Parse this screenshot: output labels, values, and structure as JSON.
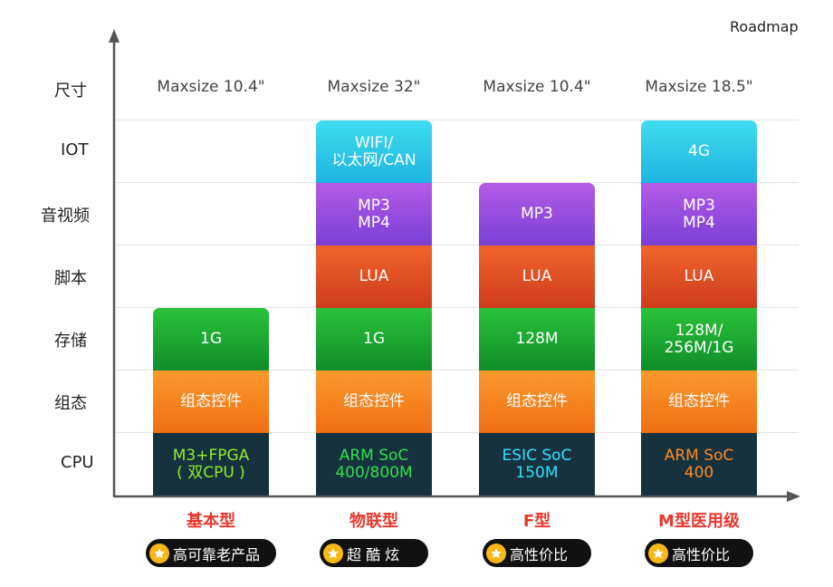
{
  "title": "Roadmap",
  "rows": [
    "尺寸",
    "IOT",
    "音视频",
    "脚本",
    "存储",
    "组态",
    "CPU"
  ],
  "products": [
    {
      "name": "基本型",
      "size": "Maxsize 10.4\"",
      "badge": "高可靠老产品",
      "cells": {
        "iot": null,
        "av": null,
        "script": null,
        "storage": "1G",
        "config": "组态控件",
        "cpu": "M3+FPGA\n( 双CPU )"
      }
    },
    {
      "name": "物联型",
      "size": "Maxsize 32\"",
      "badge": "超 酷 炫",
      "cells": {
        "iot": "WIFI/\n以太网/CAN",
        "av": "MP3\nMP4",
        "script": "LUA",
        "storage": "1G",
        "config": "组态控件",
        "cpu": "ARM SoC\n400/800M"
      }
    },
    {
      "name": "F型",
      "size": "Maxsize 10.4\"",
      "badge": "高性价比",
      "cells": {
        "iot": null,
        "av": "MP3",
        "script": "LUA",
        "storage": "128M",
        "config": "组态控件",
        "cpu": "ESIC SoC\n150M"
      }
    },
    {
      "name": "M型医用级",
      "size": "Maxsize 18.5\"",
      "badge": "高性价比",
      "cells": {
        "iot": "4G",
        "av": "MP3\nMP4",
        "script": "LUA",
        "storage": "128M/\n256M/1G",
        "config": "组态控件",
        "cpu": "ARM SoC\n400"
      }
    }
  ],
  "colors": {
    "iot": [
      "#3fdcf0",
      "#1eb4e0"
    ],
    "av": [
      "#b45be8",
      "#7a3fd6"
    ],
    "script": [
      "#f0642c",
      "#cf3c1c"
    ],
    "storage": [
      "#2bc23a",
      "#0f8d2a"
    ],
    "config": [
      "#fb9a2e",
      "#f06e12"
    ],
    "cpu": "#17323f",
    "cpu_text": [
      "#8fec2a",
      "#2ee04a",
      "#31e0ff",
      "#ff8a1f"
    ],
    "product_name": "#e8382e",
    "badge_bg": "#111111",
    "star": "#f6b819",
    "axis": "#555555"
  }
}
